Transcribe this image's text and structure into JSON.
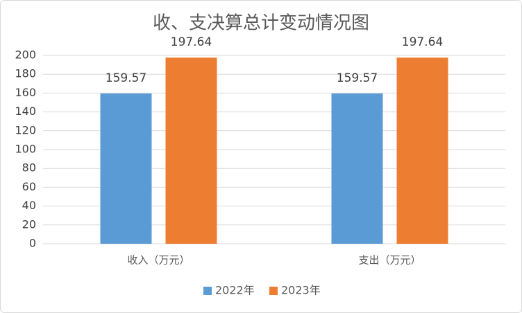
{
  "chart_data": {
    "type": "bar",
    "title": "收、支决算总计变动情况图",
    "categories": [
      "收入（万元）",
      "支出（万元）"
    ],
    "series": [
      {
        "name": "2022年",
        "color": "#5b9bd5",
        "values": [
          159.57,
          159.57
        ]
      },
      {
        "name": "2023年",
        "color": "#ed7d31",
        "values": [
          197.64,
          197.64
        ]
      }
    ],
    "ylim": [
      0,
      200
    ],
    "yticks": [
      0,
      20,
      40,
      60,
      80,
      100,
      120,
      140,
      160,
      180,
      200
    ],
    "grid": true,
    "legend": "bottom"
  }
}
